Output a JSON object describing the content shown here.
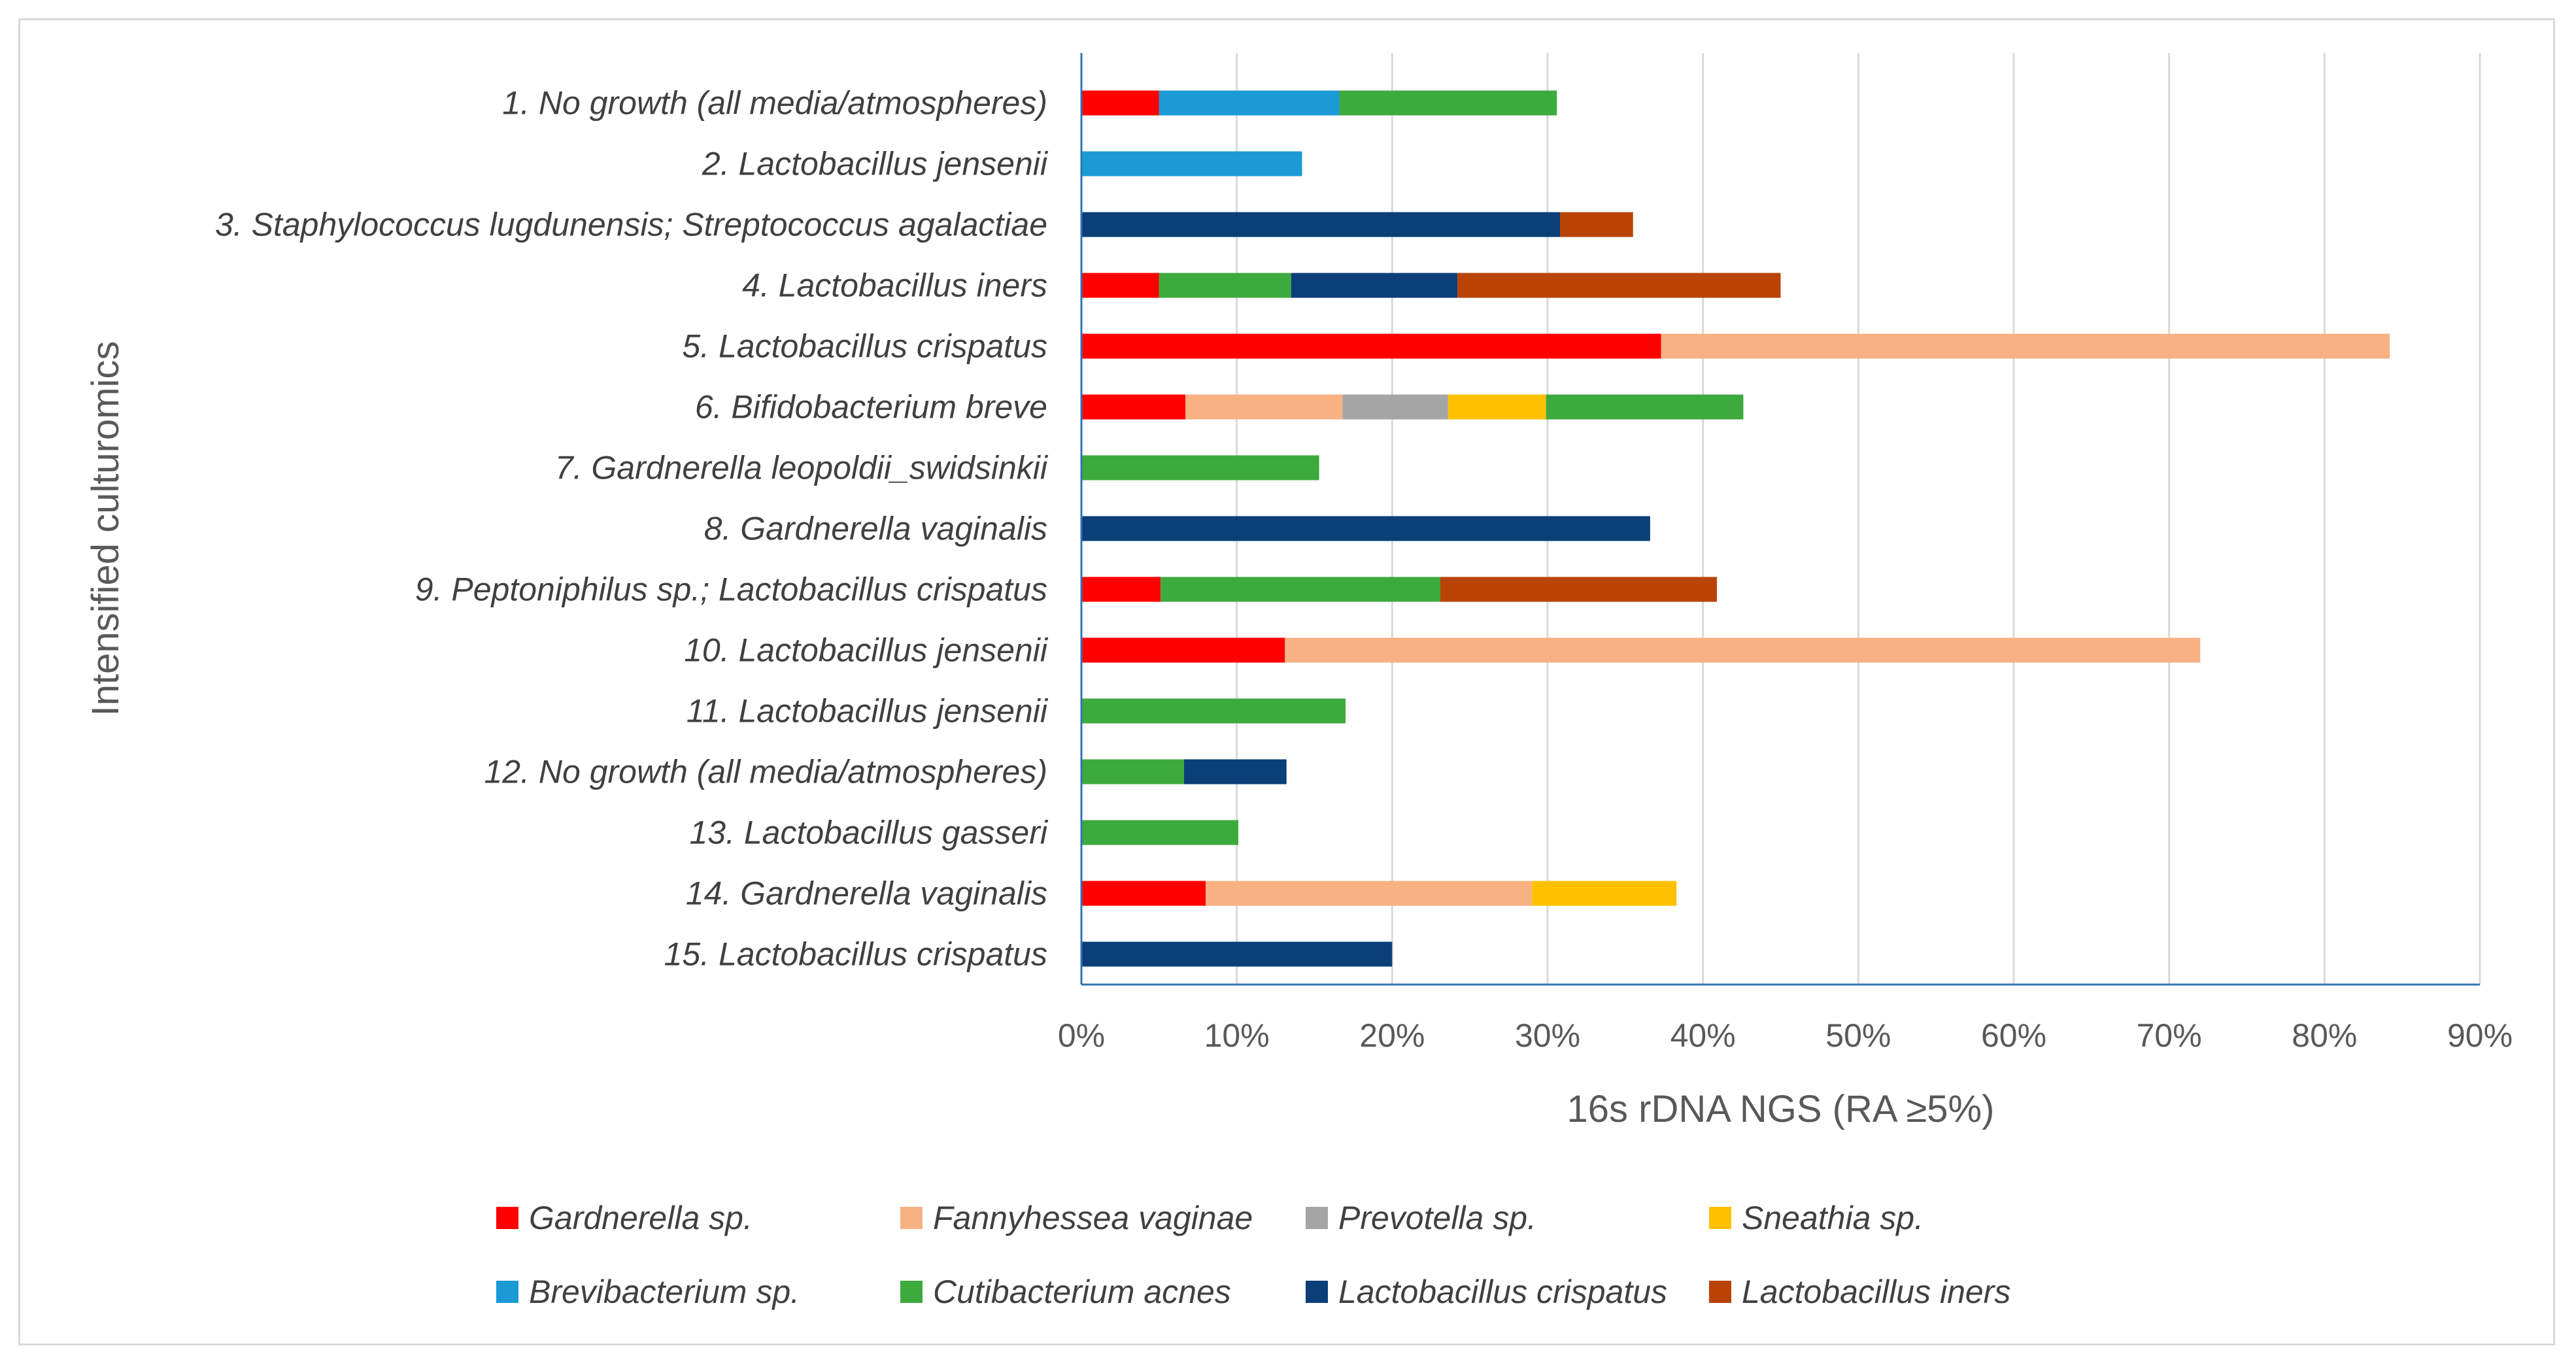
{
  "chart_data": {
    "type": "bar",
    "orientation": "horizontal",
    "stacked": true,
    "title": "",
    "xlabel": "16s rDNA NGS (RA ≥5%)",
    "ylabel": "Intensified culturomics",
    "xlim": [
      0,
      0.9
    ],
    "x_ticks": [
      0,
      0.1,
      0.2,
      0.3,
      0.4,
      0.5,
      0.6,
      0.7,
      0.8,
      0.9
    ],
    "x_tick_labels": [
      "0%",
      "10%",
      "20%",
      "30%",
      "40%",
      "50%",
      "60%",
      "70%",
      "80%",
      "90%"
    ],
    "grid": "vertical",
    "legend_position": "bottom",
    "categories": [
      "1. No growth (all media/atmospheres)",
      "2. Lactobacillus jensenii",
      "3. Staphylococcus lugdunensis; Streptococcus agalactiae",
      "4. Lactobacillus iners",
      "5. Lactobacillus crispatus",
      "6. Bifidobacterium breve",
      "7. Gardnerella leopoldii_swidsinkii",
      "8. Gardnerella vaginalis",
      "9. Peptoniphilus sp.; Lactobacillus crispatus",
      "10. Lactobacillus jensenii",
      "11. Lactobacillus jensenii",
      "12. No growth (all media/atmospheres)",
      "13. Lactobacillus gasseri",
      "14. Gardnerella vaginalis",
      "15. Lactobacillus crispatus"
    ],
    "series": [
      {
        "name": "Gardnerella sp.",
        "color": "#ff0000",
        "values": [
          0.05,
          0,
          0,
          0.05,
          0.373,
          0.067,
          0,
          0,
          0.051,
          0.131,
          0,
          0,
          0,
          0.08,
          0
        ]
      },
      {
        "name": "Fannyhessea vaginae",
        "color": "#f8b183",
        "values": [
          0,
          0,
          0,
          0,
          0.469,
          0.101,
          0,
          0,
          0,
          0.589,
          0,
          0,
          0,
          0.21,
          0
        ]
      },
      {
        "name": "Prevotella sp.",
        "color": "#a5a5a5",
        "values": [
          0,
          0,
          0,
          0,
          0,
          0.068,
          0,
          0,
          0,
          0,
          0,
          0,
          0,
          0,
          0
        ]
      },
      {
        "name": "Sneathia sp.",
        "color": "#ffc000",
        "values": [
          0,
          0,
          0,
          0,
          0,
          0.063,
          0,
          0,
          0,
          0,
          0,
          0,
          0,
          0.093,
          0
        ]
      },
      {
        "name": "Brevibacterium sp.",
        "color": "#1b9ad6",
        "values": [
          0.116,
          0.142,
          0,
          0,
          0,
          0,
          0,
          0,
          0,
          0,
          0,
          0,
          0,
          0,
          0
        ]
      },
      {
        "name": "Cutibacterium acnes",
        "color": "#3daa3d",
        "values": [
          0.14,
          0,
          0,
          0.085,
          0,
          0.127,
          0.153,
          0,
          0.18,
          0,
          0.17,
          0.066,
          0.101,
          0,
          0
        ]
      },
      {
        "name": "Lactobacillus crispatus",
        "color": "#0b3f78",
        "values": [
          0,
          0,
          0.308,
          0.107,
          0,
          0,
          0,
          0.366,
          0,
          0,
          0,
          0.066,
          0,
          0,
          0.2
        ]
      },
      {
        "name": "Lactobacillus iners",
        "color": "#b84303",
        "values": [
          0,
          0,
          0.047,
          0.208,
          0,
          0,
          0,
          0,
          0.178,
          0,
          0,
          0,
          0,
          0,
          0
        ]
      }
    ]
  }
}
